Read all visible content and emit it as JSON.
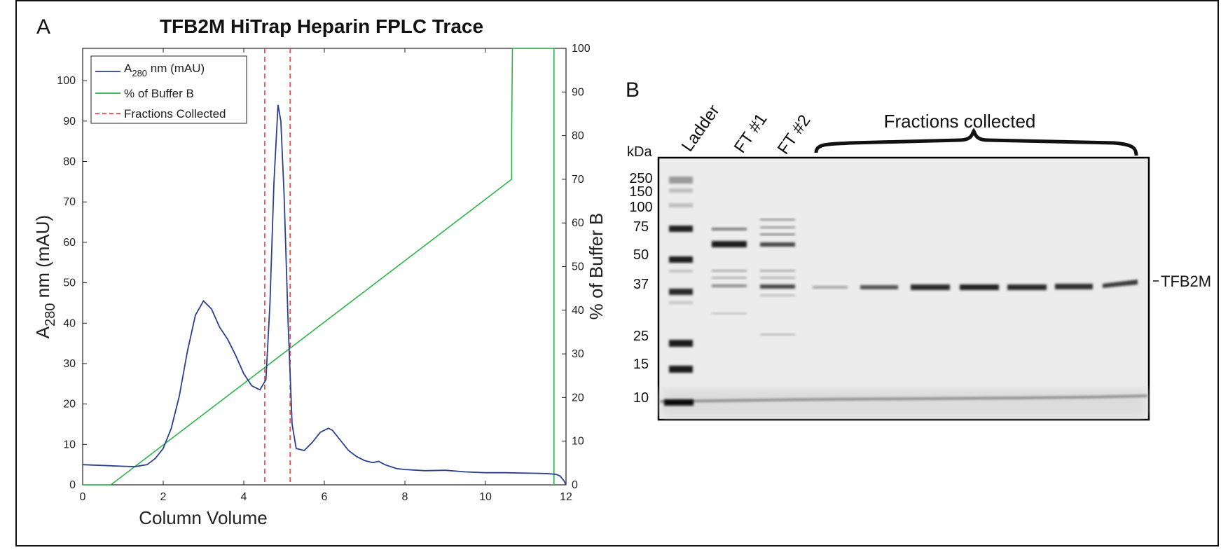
{
  "panel_a": {
    "letter": "A"
  },
  "panel_b": {
    "letter": "B"
  },
  "chart_data": {
    "type": "line",
    "title": "TFB2M HiTrap Heparin FPLC Trace",
    "xlabel": "Column Volume",
    "ylabel": {
      "main": "A",
      "sub": "280",
      "rest": " nm (mAU)"
    },
    "y2label": "% of Buffer B",
    "xlim": [
      0,
      12
    ],
    "ylim": [
      0,
      108
    ],
    "y2lim": [
      0,
      100
    ],
    "xticks": [
      0,
      2,
      4,
      6,
      8,
      10,
      12
    ],
    "yticks": [
      0,
      10,
      20,
      30,
      40,
      50,
      60,
      70,
      80,
      90,
      100
    ],
    "y2ticks": [
      0,
      10,
      20,
      30,
      40,
      50,
      60,
      70,
      80,
      90,
      100
    ],
    "grid": false,
    "legend": {
      "position": "top-left",
      "entries": [
        {
          "main": "A",
          "sub": "280",
          "rest": " nm (mAU)"
        },
        {
          "main": "% of Buffer B",
          "sub": "",
          "rest": ""
        },
        {
          "main": "Fractions Collected",
          "sub": "",
          "rest": ""
        }
      ]
    },
    "colors": {
      "a280": "#2b3f8f",
      "buffer_b": "#2db34a",
      "fractions": "#ee4444"
    },
    "series": [
      {
        "axis": "left",
        "x": [
          0,
          0.5,
          1.0,
          1.3,
          1.6,
          1.8,
          2.0,
          2.2,
          2.4,
          2.6,
          2.8,
          3.0,
          3.2,
          3.4,
          3.6,
          3.8,
          4.0,
          4.2,
          4.4,
          4.55,
          4.65,
          4.75,
          4.85,
          4.92,
          5.0,
          5.1,
          5.2,
          5.3,
          5.5,
          5.7,
          5.9,
          6.1,
          6.2,
          6.4,
          6.6,
          6.8,
          7.0,
          7.2,
          7.35,
          7.5,
          7.8,
          8.0,
          8.5,
          9.0,
          9.5,
          10.0,
          10.5,
          11.0,
          11.5,
          11.75,
          11.85,
          11.95,
          12.0
        ],
        "y": [
          5,
          4.8,
          4.6,
          4.5,
          5,
          6.5,
          9,
          14,
          22,
          33,
          42,
          45.5,
          43.5,
          39,
          36,
          32,
          27.5,
          24.5,
          23.5,
          26,
          45,
          75,
          94,
          90,
          72,
          40,
          15,
          9,
          8.5,
          10.5,
          13,
          14,
          13.5,
          11,
          8.5,
          7,
          6,
          5.5,
          5.8,
          5,
          4,
          3.8,
          3.5,
          3.6,
          3.2,
          3,
          3,
          2.9,
          2.8,
          2.6,
          2.2,
          1,
          0
        ]
      },
      {
        "axis": "right",
        "x": [
          0,
          0.7,
          10.65,
          10.65,
          10.67,
          11.7,
          11.7
        ],
        "y": [
          0,
          0,
          70,
          80,
          100,
          100,
          0
        ]
      }
    ],
    "fraction_lines": [
      4.52,
      5.15
    ],
    "gel": {
      "lanes": [
        "Ladder",
        "FT #1",
        "FT #2"
      ],
      "group_label": "Fractions collected",
      "unit": "kDa",
      "markers": [
        "250",
        "150",
        "100",
        "75",
        "50",
        "37",
        "25",
        "15",
        "10"
      ],
      "band_label": "TFB2M"
    }
  }
}
